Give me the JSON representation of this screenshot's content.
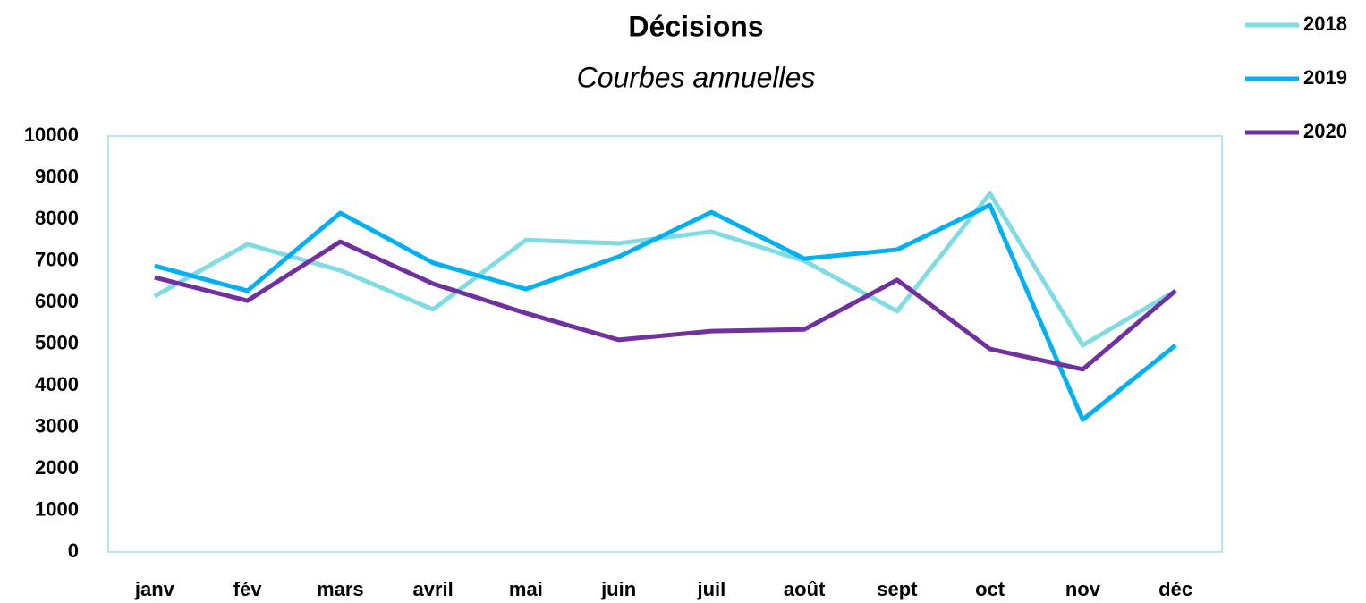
{
  "chart_data": {
    "type": "line",
    "title": "Décisions",
    "subtitle": "Courbes annuelles",
    "categories": [
      "janv",
      "fév",
      "mars",
      "avril",
      "mai",
      "juin",
      "juil",
      "août",
      "sept",
      "oct",
      "nov",
      "déc"
    ],
    "series": [
      {
        "name": "2018",
        "color": "#80dbe2",
        "values": [
          6150,
          7400,
          6770,
          5830,
          7500,
          7420,
          7700,
          7000,
          5790,
          8620,
          4970,
          6280
        ]
      },
      {
        "name": "2019",
        "color": "#00b0f0",
        "values": [
          6880,
          6280,
          8150,
          6950,
          6320,
          7100,
          8170,
          7050,
          7270,
          8340,
          3180,
          4970
        ]
      },
      {
        "name": "2020",
        "color": "#7030a0",
        "values": [
          6600,
          6040,
          7460,
          6450,
          5740,
          5100,
          5310,
          5350,
          6540,
          4880,
          4390,
          6280
        ]
      }
    ],
    "ylim": [
      0,
      10000
    ],
    "yticks": [
      0,
      1000,
      2000,
      3000,
      4000,
      5000,
      6000,
      7000,
      8000,
      9000,
      10000
    ],
    "grid": false,
    "legend": "top-right"
  }
}
